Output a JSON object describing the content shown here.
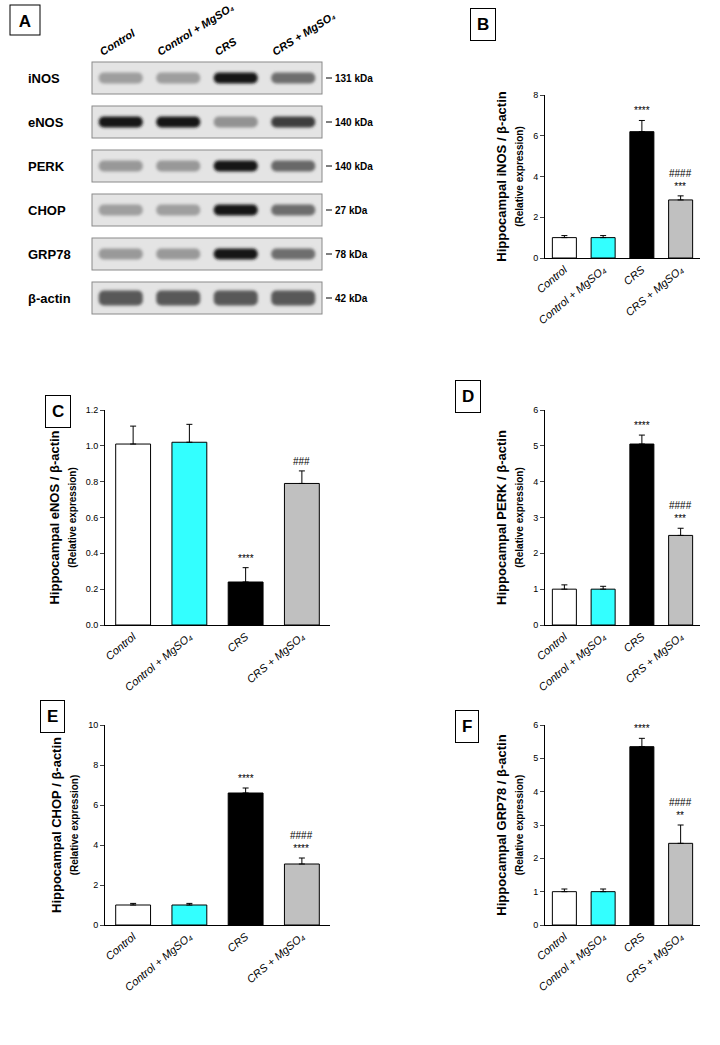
{
  "blot": {
    "panel": "A",
    "lanes": [
      "Control",
      "Control + MgSO₄",
      "CRS",
      "CRS + MgSO₄"
    ],
    "rows": [
      {
        "name": "iNOS",
        "size": "131 kDa"
      },
      {
        "name": "eNOS",
        "size": "140 kDa"
      },
      {
        "name": "PERK",
        "size": "140 kDa"
      },
      {
        "name": "CHOP",
        "size": "27 kDa"
      },
      {
        "name": "GRP78",
        "size": "78 kDa"
      },
      {
        "name": "β-actin",
        "size": "42 kDa"
      }
    ]
  },
  "chart_data": [
    {
      "panel": "B",
      "type": "bar",
      "y_label": "Hippocampal iNOS / β-actin",
      "y_sublabel": "(Relative expression)",
      "categories": [
        "Control",
        "Control + MgSO₄",
        "CRS",
        "CRS + MgSO₄"
      ],
      "values": [
        1.0,
        1.0,
        6.2,
        2.85
      ],
      "errors": [
        0.1,
        0.1,
        0.55,
        0.2
      ],
      "colors": [
        "#ffffff",
        "#33ffff",
        "#000000",
        "#c0c0c0"
      ],
      "annotations": [
        [],
        [],
        [
          "****"
        ],
        [
          "####",
          "***"
        ]
      ],
      "ylim": [
        0,
        8
      ],
      "yticks": [
        0,
        2,
        4,
        6,
        8
      ],
      "grid": false
    },
    {
      "panel": "C",
      "type": "bar",
      "y_label": "Hippocampal eNOS / β-actin",
      "y_sublabel": "(Relative expression)",
      "categories": [
        "Control",
        "Control + MgSO₄",
        "CRS",
        "CRS + MgSO₄"
      ],
      "values": [
        1.01,
        1.02,
        0.24,
        0.79
      ],
      "errors": [
        0.1,
        0.1,
        0.08,
        0.07
      ],
      "colors": [
        "#ffffff",
        "#33ffff",
        "#000000",
        "#c0c0c0"
      ],
      "annotations": [
        [],
        [],
        [
          "****"
        ],
        [
          "###"
        ]
      ],
      "ylim": [
        0,
        1.2
      ],
      "yticks": [
        {
          "value": 0,
          "label": "0.0"
        },
        0.2,
        0.4,
        0.6,
        0.8,
        {
          "value": 1,
          "label": "1.0"
        },
        1.2
      ],
      "grid": false
    },
    {
      "panel": "D",
      "type": "bar",
      "y_label": "Hippocampal PERK / β-actin",
      "y_sublabel": "(Relative expression)",
      "categories": [
        "Control",
        "Control + MgSO₄",
        "CRS",
        "CRS + MgSO₄"
      ],
      "values": [
        1.0,
        1.0,
        5.05,
        2.5
      ],
      "errors": [
        0.12,
        0.08,
        0.25,
        0.2
      ],
      "colors": [
        "#ffffff",
        "#33ffff",
        "#000000",
        "#c0c0c0"
      ],
      "annotations": [
        [],
        [],
        [
          "****"
        ],
        [
          "####",
          "***"
        ]
      ],
      "ylim": [
        0,
        6
      ],
      "yticks": [
        0,
        1,
        2,
        3,
        4,
        5,
        6
      ],
      "grid": false
    },
    {
      "panel": "E",
      "type": "bar",
      "y_label": "Hippocampal CHOP / β-actin",
      "y_sublabel": "(Relative expression)",
      "categories": [
        "Control",
        "Control + MgSO₄",
        "CRS",
        "CRS + MgSO₄"
      ],
      "values": [
        1.0,
        1.0,
        6.6,
        3.05
      ],
      "errors": [
        0.08,
        0.08,
        0.25,
        0.3
      ],
      "colors": [
        "#ffffff",
        "#33ffff",
        "#000000",
        "#c0c0c0"
      ],
      "annotations": [
        [],
        [],
        [
          "****"
        ],
        [
          "####",
          "****"
        ]
      ],
      "ylim": [
        0,
        10
      ],
      "yticks": [
        0,
        2,
        4,
        6,
        8,
        10
      ],
      "grid": false
    },
    {
      "panel": "F",
      "type": "bar",
      "y_label": "Hippocampal GRP78 / β-actin",
      "y_sublabel": "(Relative expression)",
      "categories": [
        "Control",
        "Control + MgSO₄",
        "CRS",
        "CRS + MgSO₄"
      ],
      "values": [
        1.0,
        1.0,
        5.35,
        2.45
      ],
      "errors": [
        0.08,
        0.08,
        0.25,
        0.55
      ],
      "colors": [
        "#ffffff",
        "#33ffff",
        "#000000",
        "#c0c0c0"
      ],
      "annotations": [
        [],
        [],
        [
          "****"
        ],
        [
          "####",
          "**"
        ]
      ],
      "ylim": [
        0,
        6
      ],
      "yticks": [
        0,
        1,
        2,
        3,
        4,
        5,
        6
      ],
      "grid": false
    }
  ]
}
